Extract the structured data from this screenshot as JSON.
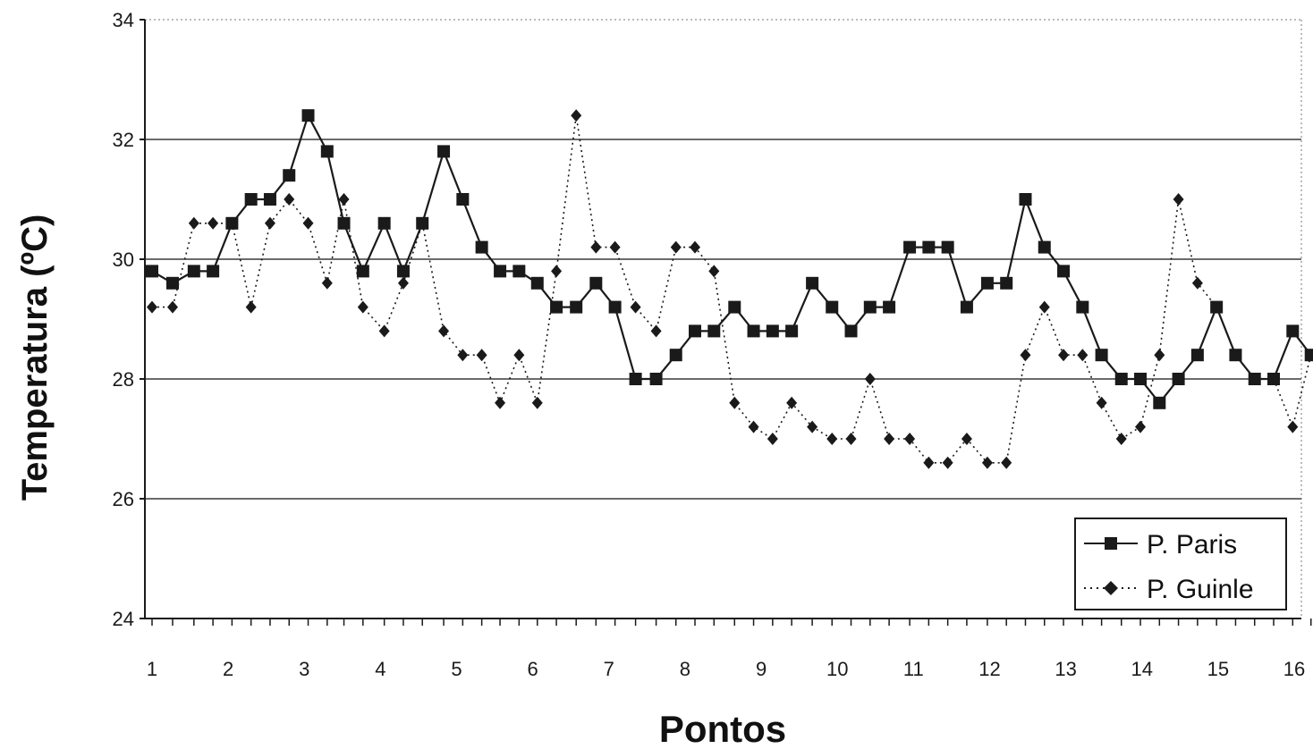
{
  "chart_data": {
    "type": "line",
    "title": "",
    "xlabel": "Pontos",
    "ylabel": "Temperatura (ºC)",
    "ylim": [
      24,
      34
    ],
    "yticks": [
      "24",
      "26",
      "28",
      "30",
      "32",
      "34"
    ],
    "xlim": [
      1,
      16
    ],
    "xticks": [
      "1",
      "2",
      "3",
      "4",
      "5",
      "6",
      "7",
      "8",
      "9",
      "10",
      "11",
      "12",
      "13",
      "14",
      "15",
      "16"
    ],
    "grid": "horizontal",
    "legend_position": "bottom-right",
    "series": [
      {
        "name": "P. Paris",
        "marker": "square",
        "line_style": "solid",
        "color": "#1a1a1a",
        "points": [
          [
            1.0,
            29.8
          ],
          [
            1.27,
            29.6
          ],
          [
            1.55,
            29.8
          ],
          [
            1.8,
            29.8
          ],
          [
            2.05,
            30.6
          ],
          [
            2.3,
            31.0
          ],
          [
            2.55,
            31.0
          ],
          [
            2.8,
            31.4
          ],
          [
            3.05,
            32.4
          ],
          [
            3.3,
            31.8
          ],
          [
            3.52,
            30.6
          ],
          [
            3.77,
            29.8
          ],
          [
            4.05,
            30.6
          ],
          [
            4.3,
            29.8
          ],
          [
            4.55,
            30.6
          ],
          [
            4.83,
            31.8
          ],
          [
            5.08,
            31.0
          ],
          [
            5.33,
            30.2
          ],
          [
            5.57,
            29.8
          ],
          [
            5.82,
            29.8
          ],
          [
            6.06,
            29.6
          ],
          [
            6.31,
            29.2
          ],
          [
            6.57,
            29.2
          ],
          [
            6.83,
            29.6
          ],
          [
            7.08,
            29.2
          ],
          [
            7.35,
            28.0
          ],
          [
            7.62,
            28.0
          ],
          [
            7.88,
            28.4
          ],
          [
            8.13,
            28.8
          ],
          [
            8.38,
            28.8
          ],
          [
            8.65,
            29.2
          ],
          [
            8.9,
            28.8
          ],
          [
            9.15,
            28.8
          ],
          [
            9.4,
            28.8
          ],
          [
            9.67,
            29.6
          ],
          [
            9.93,
            29.2
          ],
          [
            10.18,
            28.8
          ],
          [
            10.43,
            29.2
          ],
          [
            10.68,
            29.2
          ],
          [
            10.95,
            30.2
          ],
          [
            11.2,
            30.2
          ],
          [
            11.45,
            30.2
          ],
          [
            11.7,
            29.2
          ],
          [
            11.97,
            29.6
          ],
          [
            12.22,
            29.6
          ],
          [
            12.47,
            31.0
          ],
          [
            12.72,
            30.2
          ],
          [
            12.97,
            29.8
          ],
          [
            13.22,
            29.2
          ],
          [
            13.47,
            28.4
          ],
          [
            13.73,
            28.0
          ],
          [
            13.98,
            28.0
          ],
          [
            14.23,
            27.6
          ],
          [
            14.48,
            28.0
          ],
          [
            14.73,
            28.4
          ],
          [
            14.98,
            29.2
          ],
          [
            15.23,
            28.4
          ],
          [
            15.48,
            28.0
          ],
          [
            15.73,
            28.0
          ],
          [
            15.98,
            28.8
          ],
          [
            16.22,
            28.4
          ]
        ]
      },
      {
        "name": "P. Guinle",
        "marker": "diamond",
        "line_style": "dotted",
        "color": "#1a1a1a",
        "points": [
          [
            1.0,
            29.2
          ],
          [
            1.27,
            29.2
          ],
          [
            1.55,
            30.6
          ],
          [
            1.8,
            30.6
          ],
          [
            2.05,
            30.6
          ],
          [
            2.3,
            29.2
          ],
          [
            2.55,
            30.6
          ],
          [
            2.8,
            31.0
          ],
          [
            3.05,
            30.6
          ],
          [
            3.3,
            29.6
          ],
          [
            3.52,
            31.0
          ],
          [
            3.77,
            29.2
          ],
          [
            4.05,
            28.8
          ],
          [
            4.3,
            29.6
          ],
          [
            4.55,
            30.6
          ],
          [
            4.83,
            28.8
          ],
          [
            5.08,
            28.4
          ],
          [
            5.33,
            28.4
          ],
          [
            5.57,
            27.6
          ],
          [
            5.82,
            28.4
          ],
          [
            6.06,
            27.6
          ],
          [
            6.31,
            29.8
          ],
          [
            6.57,
            32.4
          ],
          [
            6.83,
            30.2
          ],
          [
            7.08,
            30.2
          ],
          [
            7.35,
            29.2
          ],
          [
            7.62,
            28.8
          ],
          [
            7.88,
            30.2
          ],
          [
            8.13,
            30.2
          ],
          [
            8.38,
            29.8
          ],
          [
            8.65,
            27.6
          ],
          [
            8.9,
            27.2
          ],
          [
            9.15,
            27.0
          ],
          [
            9.4,
            27.6
          ],
          [
            9.67,
            27.2
          ],
          [
            9.93,
            27.0
          ],
          [
            10.18,
            27.0
          ],
          [
            10.43,
            28.0
          ],
          [
            10.68,
            27.0
          ],
          [
            10.95,
            27.0
          ],
          [
            11.2,
            26.6
          ],
          [
            11.45,
            26.6
          ],
          [
            11.7,
            27.0
          ],
          [
            11.97,
            26.6
          ],
          [
            12.22,
            26.6
          ],
          [
            12.47,
            28.4
          ],
          [
            12.72,
            29.2
          ],
          [
            12.97,
            28.4
          ],
          [
            13.22,
            28.4
          ],
          [
            13.47,
            27.6
          ],
          [
            13.73,
            27.0
          ],
          [
            13.98,
            27.2
          ],
          [
            14.23,
            28.4
          ],
          [
            14.48,
            31.0
          ],
          [
            14.73,
            29.6
          ],
          [
            14.98,
            29.2
          ],
          [
            15.23,
            28.4
          ],
          [
            15.48,
            28.0
          ],
          [
            15.73,
            28.0
          ],
          [
            15.98,
            27.2
          ],
          [
            16.22,
            28.4
          ]
        ]
      }
    ]
  }
}
